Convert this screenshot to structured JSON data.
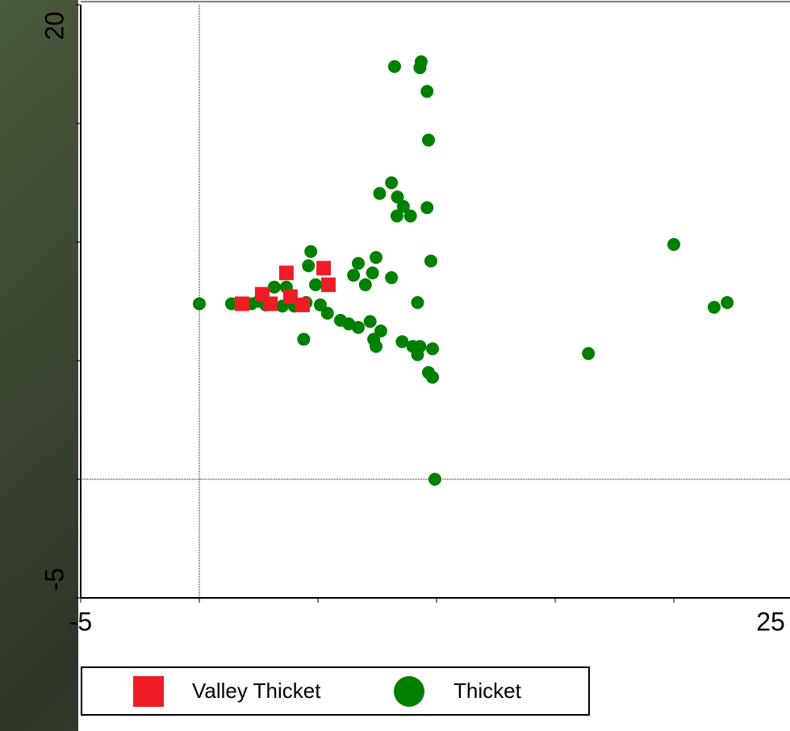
{
  "chart_data": {
    "type": "scatter",
    "xlim": [
      -5,
      25
    ],
    "ylim": [
      -5,
      20
    ],
    "xticks": [
      -5,
      25
    ],
    "yticks": [
      -5,
      20
    ],
    "xminor": [
      0,
      5,
      10,
      15,
      20
    ],
    "yminor": [
      0,
      5,
      10,
      15
    ],
    "zero_lines": true,
    "series": [
      {
        "name": "Valley Thicket",
        "color": "#ee1c25",
        "marker": "square",
        "x": [
          3.67,
          5.24,
          5.44,
          2.65,
          1.8,
          3.0,
          3.84,
          4.35
        ],
        "values": [
          8.7,
          8.9,
          8.2,
          7.8,
          7.4,
          7.4,
          7.7,
          7.35
        ]
      },
      {
        "name": "Thicket",
        "color": "#008000",
        "marker": "circle",
        "x": [
          0,
          1.36,
          2.2,
          2.5,
          3.16,
          3.67,
          4.7,
          4.6,
          4.9,
          4.5,
          5.1,
          5.4,
          4.4,
          5.95,
          6.3,
          6.7,
          6.5,
          6.7,
          7.45,
          7.0,
          7.3,
          8.1,
          7.2,
          7.65,
          7.35,
          7.45,
          8.55,
          9.0,
          9.2,
          9.3,
          9.83,
          9.66,
          9.83,
          9.93,
          9.2,
          9.76,
          9.6,
          8.9,
          8.33,
          8.6,
          8.35,
          8.1,
          7.6,
          9.66,
          9.6,
          9.3,
          9.35,
          8.23,
          16.4,
          20.0,
          21.7,
          22.25,
          2.8,
          3.5,
          4.0
        ],
        "values": [
          7.4,
          7.4,
          7.4,
          7.5,
          8.1,
          8.1,
          9.6,
          9.0,
          8.2,
          7.45,
          7.35,
          7.0,
          5.9,
          6.7,
          6.55,
          6.4,
          8.6,
          9.1,
          9.35,
          8.2,
          8.7,
          8.5,
          6.65,
          6.25,
          5.9,
          5.6,
          5.8,
          5.6,
          5.25,
          5.6,
          5.5,
          4.5,
          4.3,
          0,
          7.45,
          9.2,
          11.45,
          11.1,
          11.1,
          11.5,
          11.9,
          12.5,
          12.05,
          14.3,
          16.35,
          17.35,
          17.6,
          17.4,
          5.3,
          9.9,
          7.25,
          7.45,
          7.35,
          7.3,
          7.3
        ]
      }
    ]
  }
}
